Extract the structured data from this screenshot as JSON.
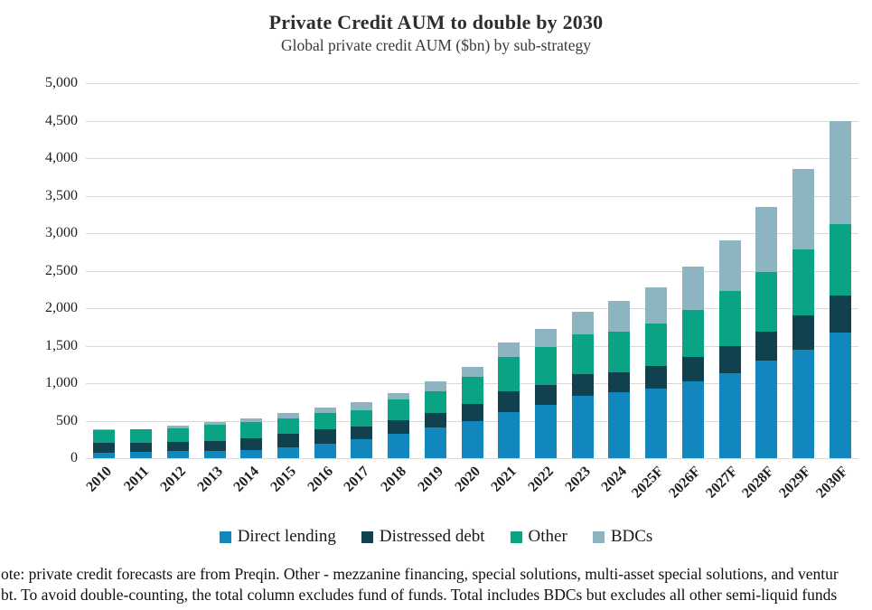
{
  "title": "Private Credit AUM to double by 2030",
  "subtitle": "Global private credit AUM ($bn) by sub-strategy",
  "footnote": {
    "line1": "ote: private credit forecasts are from Preqin. Other - mezzanine financing, special solutions, multi-asset special  solutions, and ventur",
    "line2": "bt.  To avoid double-counting, the total column excludes fund of funds. Total includes BDCs but excludes all other semi-liquid funds"
  },
  "chart_data": {
    "type": "bar",
    "stacked": true,
    "title": "Private Credit AUM to double by 2030",
    "subtitle": "Global private credit AUM ($bn) by sub-strategy",
    "categories": [
      "2010",
      "2011",
      "2012",
      "2013",
      "2014",
      "2015",
      "2016",
      "2017",
      "2018",
      "2019",
      "2020",
      "2021",
      "2022",
      "2023",
      "2024",
      "2025F",
      "2026F",
      "2027F",
      "2028F",
      "2029F",
      "2030F"
    ],
    "series": [
      {
        "name": "Direct lending",
        "color": "#1287bd",
        "values": [
          70,
          90,
          100,
          100,
          110,
          150,
          190,
          250,
          330,
          410,
          490,
          620,
          710,
          830,
          880,
          930,
          1020,
          1130,
          1300,
          1450,
          1670
        ]
      },
      {
        "name": "Distressed debt",
        "color": "#11414e",
        "values": [
          140,
          120,
          120,
          130,
          150,
          180,
          190,
          170,
          170,
          190,
          230,
          270,
          270,
          290,
          270,
          300,
          330,
          370,
          390,
          450,
          500
        ]
      },
      {
        "name": "Other",
        "color": "#0aa383",
        "values": [
          160,
          170,
          180,
          210,
          220,
          200,
          220,
          220,
          280,
          290,
          360,
          460,
          500,
          530,
          540,
          570,
          630,
          730,
          790,
          880,
          950
        ]
      },
      {
        "name": "BDCs",
        "color": "#8db4c1",
        "values": [
          10,
          10,
          30,
          40,
          50,
          70,
          80,
          110,
          90,
          130,
          140,
          190,
          240,
          300,
          410,
          480,
          580,
          670,
          870,
          1080,
          1380
        ]
      }
    ],
    "totals": [
      380,
      390,
      430,
      480,
      530,
      600,
      680,
      750,
      870,
      1020,
      1220,
      1540,
      1720,
      1950,
      2100,
      2280,
      2560,
      2900,
      3350,
      3860,
      4500
    ],
    "ylim": [
      0,
      5000
    ],
    "ytick_step": 500,
    "yticks": [
      "0",
      "500",
      "1,000",
      "1,500",
      "2,000",
      "2,500",
      "3,000",
      "3,500",
      "4,000",
      "4,500",
      "5,000"
    ],
    "grid": true,
    "gridline_color": "#d9d9d9",
    "legend_position": "bottom",
    "legend": [
      "Direct lending",
      "Distressed debt",
      "Other",
      "BDCs"
    ]
  }
}
